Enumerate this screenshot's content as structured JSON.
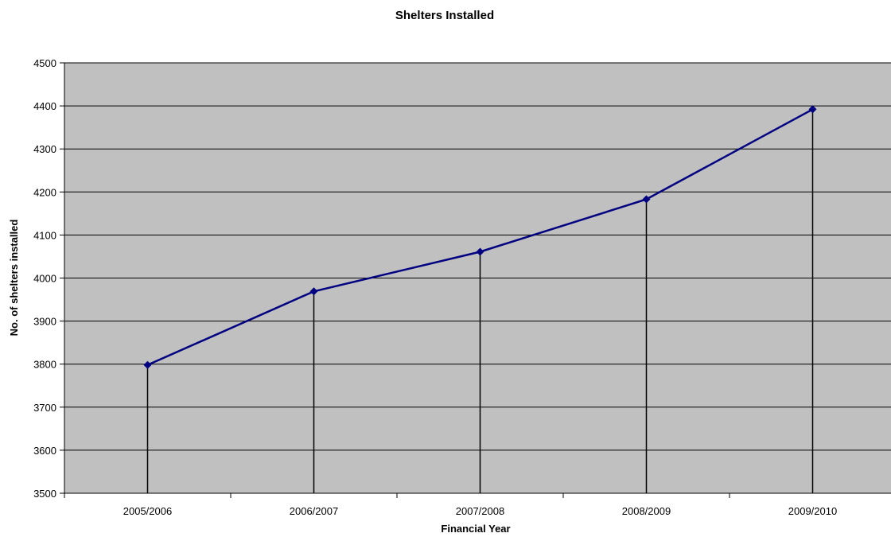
{
  "chart_data": {
    "type": "line",
    "title": "Shelters Installed",
    "xlabel": "Financial Year",
    "ylabel": "No. of shelters installed",
    "categories": [
      "2005/2006",
      "2006/2007",
      "2007/2008",
      "2008/2009",
      "2009/2010"
    ],
    "series": [
      {
        "values": [
          3798,
          3969,
          4061,
          4183,
          4392
        ]
      }
    ],
    "ylim": [
      3500,
      4500
    ],
    "yticks": [
      3500,
      3600,
      3700,
      3800,
      3900,
      4000,
      4100,
      4200,
      4300,
      4400,
      4500
    ],
    "drop_lines": true,
    "grid": true,
    "legend": "none",
    "colors": {
      "plot_background": "#c0c0c0",
      "series_line": "#000080",
      "gridline": "#000000"
    }
  }
}
